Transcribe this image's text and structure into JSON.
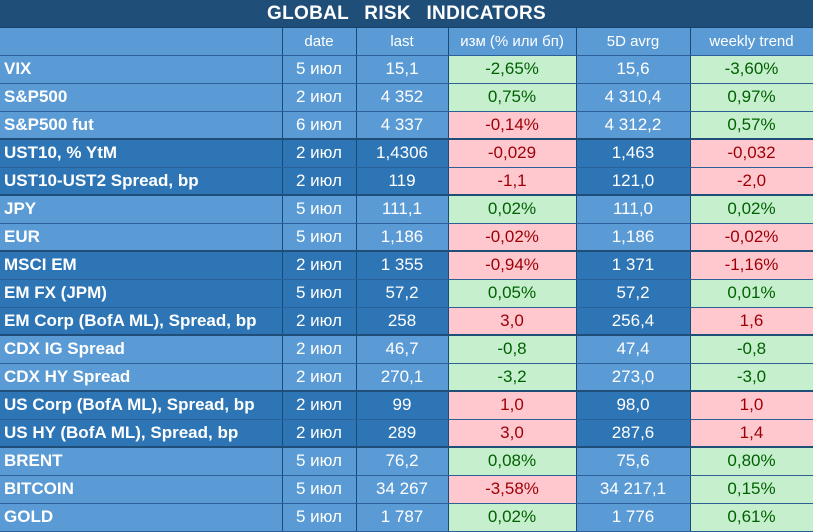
{
  "title": "GLOBAL   RISK   INDICATORS",
  "columns": [
    "",
    "date",
    "last",
    "изм (% или бп)",
    "5D avrg",
    "weekly trend"
  ],
  "rows": [
    {
      "name": "VIX",
      "date": "5 июл",
      "last": "15,1",
      "chg": "-2,65%",
      "chg_sign": "pos",
      "avg": "15,6",
      "wk": "-3,60%",
      "wk_sign": "pos",
      "group": "light",
      "start": false
    },
    {
      "name": "S&P500",
      "date": "2 июл",
      "last": "4 352",
      "chg": "0,75%",
      "chg_sign": "pos",
      "avg": "4 310,4",
      "wk": "0,97%",
      "wk_sign": "pos",
      "group": "light",
      "start": false
    },
    {
      "name": "S&P500 fut",
      "date": "6 июл",
      "last": "4 337",
      "chg": "-0,14%",
      "chg_sign": "neg",
      "avg": "4 312,2",
      "wk": "0,57%",
      "wk_sign": "pos",
      "group": "light",
      "start": false
    },
    {
      "name": "UST10, % YtM",
      "date": "2 июл",
      "last": "1,4306",
      "chg": "-0,029",
      "chg_sign": "neg",
      "avg": "1,463",
      "wk": "-0,032",
      "wk_sign": "neg",
      "group": "dark",
      "start": true
    },
    {
      "name": "UST10-UST2 Spread, bp",
      "date": "2 июл",
      "last": "119",
      "chg": "-1,1",
      "chg_sign": "neg",
      "avg": "121,0",
      "wk": "-2,0",
      "wk_sign": "neg",
      "group": "dark",
      "start": false
    },
    {
      "name": "JPY",
      "date": "5 июл",
      "last": "111,1",
      "chg": "0,02%",
      "chg_sign": "pos",
      "avg": "111,0",
      "wk": "0,02%",
      "wk_sign": "pos",
      "group": "light",
      "start": true
    },
    {
      "name": "EUR",
      "date": "5 июл",
      "last": "1,186",
      "chg": "-0,02%",
      "chg_sign": "neg",
      "avg": "1,186",
      "wk": "-0,02%",
      "wk_sign": "neg",
      "group": "light",
      "start": false
    },
    {
      "name": "MSCI EM",
      "date": "2 июл",
      "last": "1 355",
      "chg": "-0,94%",
      "chg_sign": "neg",
      "avg": "1 371",
      "wk": "-1,16%",
      "wk_sign": "neg",
      "group": "dark",
      "start": true
    },
    {
      "name": "EM FX (JPM)",
      "date": "5 июл",
      "last": "57,2",
      "chg": "0,05%",
      "chg_sign": "pos",
      "avg": "57,2",
      "wk": "0,01%",
      "wk_sign": "pos",
      "group": "dark",
      "start": false
    },
    {
      "name": "EM Corp (BofA ML), Spread, bp",
      "date": "2 июл",
      "last": "258",
      "chg": "3,0",
      "chg_sign": "neg",
      "avg": "256,4",
      "wk": "1,6",
      "wk_sign": "neg",
      "group": "dark",
      "start": false
    },
    {
      "name": "CDX IG Spread",
      "date": "2 июл",
      "last": "46,7",
      "chg": "-0,8",
      "chg_sign": "pos",
      "avg": "47,4",
      "wk": "-0,8",
      "wk_sign": "pos",
      "group": "light",
      "start": true
    },
    {
      "name": "CDX HY Spread",
      "date": "2 июл",
      "last": "270,1",
      "chg": "-3,2",
      "chg_sign": "pos",
      "avg": "273,0",
      "wk": "-3,0",
      "wk_sign": "pos",
      "group": "light",
      "start": false
    },
    {
      "name": "US Corp (BofA ML), Spread, bp",
      "date": "2 июл",
      "last": "99",
      "chg": "1,0",
      "chg_sign": "neg",
      "avg": "98,0",
      "wk": "1,0",
      "wk_sign": "neg",
      "group": "dark",
      "start": true
    },
    {
      "name": "US HY (BofA ML), Spread, bp",
      "date": "2 июл",
      "last": "289",
      "chg": "3,0",
      "chg_sign": "neg",
      "avg": "287,6",
      "wk": "1,4",
      "wk_sign": "neg",
      "group": "dark",
      "start": false
    },
    {
      "name": "BRENT",
      "date": "5 июл",
      "last": "76,2",
      "chg": "0,08%",
      "chg_sign": "pos",
      "avg": "75,6",
      "wk": "0,80%",
      "wk_sign": "pos",
      "group": "light",
      "start": true
    },
    {
      "name": "BITCOIN",
      "date": "5 июл",
      "last": "34 267",
      "chg": "-3,58%",
      "chg_sign": "neg",
      "avg": "34 217,1",
      "wk": "0,15%",
      "wk_sign": "pos",
      "group": "light",
      "start": false
    },
    {
      "name": "GOLD",
      "date": "5 июл",
      "last": "1 787",
      "chg": "0,02%",
      "chg_sign": "pos",
      "avg": "1 776",
      "wk": "0,61%",
      "wk_sign": "pos",
      "group": "light",
      "start": false
    }
  ]
}
